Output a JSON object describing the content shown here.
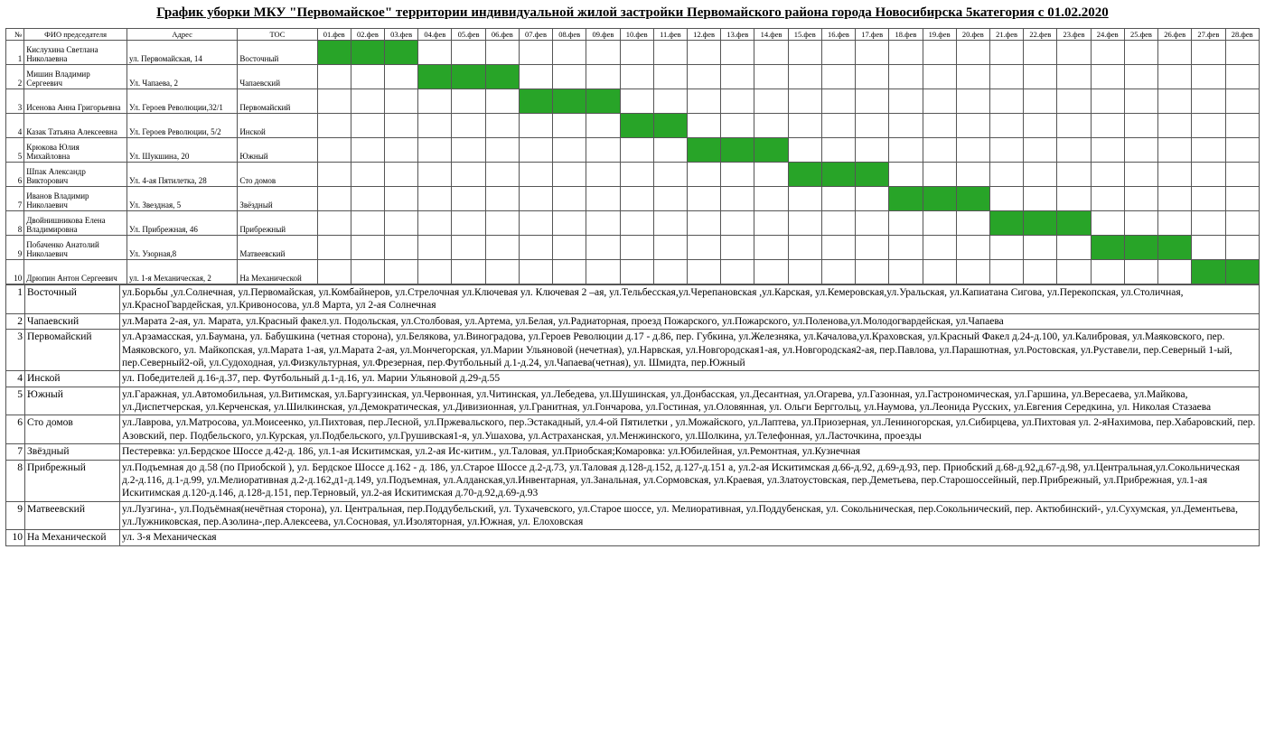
{
  "title": "График уборки МКУ \"Первомайское\" территории индивидуальной жилой застройки Первомайского района города Новосибирска  5категория с 01.02.2020",
  "headers": {
    "num": "№",
    "name": "ФИО председателя",
    "address": "Адрес",
    "tos": "ТОС"
  },
  "days": [
    "01.фев",
    "02.фев",
    "03.фев",
    "04.фев",
    "05.фев",
    "06.фев",
    "07.фев",
    "08.фев",
    "09.фев",
    "10.фев",
    "11.фев",
    "12.фев",
    "13.фев",
    "14.фев",
    "15.фев",
    "16.фев",
    "17.фев",
    "18.фев",
    "19.фев",
    "20.фев",
    "21.фев",
    "22.фев",
    "23.фев",
    "24.фев",
    "25.фев",
    "26.фев",
    "27.фев",
    "28.фев"
  ],
  "rows": [
    {
      "num": "1",
      "name": "Кислухина Светлана Николаевна",
      "address": "ул. Первомайская, 14",
      "tos": "Восточный",
      "marks": [
        1,
        2,
        3
      ]
    },
    {
      "num": "2",
      "name": "Мишин Владимир Сергеевич",
      "address": "Ул. Чапаева, 2",
      "tos": "Чапаевский",
      "marks": [
        4,
        5,
        6
      ]
    },
    {
      "num": "3",
      "name": "Исенова Анна Григорьевна",
      "address": "Ул. Героев Революции,32/1",
      "tos": "Первомайский",
      "marks": [
        7,
        8,
        9
      ]
    },
    {
      "num": "4",
      "name": "Казак Татьяна Алексеевна",
      "address": "Ул. Героев Революции, 5/2",
      "tos": "Инской",
      "marks": [
        10,
        11
      ]
    },
    {
      "num": "5",
      "name": "Крюкова Юлия Михайловна",
      "address": "Ул. Шукшина, 20",
      "tos": "Южный",
      "marks": [
        12,
        13,
        14
      ]
    },
    {
      "num": "6",
      "name": "Шпак Александр Викторович",
      "address": "Ул. 4-ая Пятилетка, 28",
      "tos": "Сто домов",
      "marks": [
        15,
        16,
        17
      ]
    },
    {
      "num": "7",
      "name": "Иванов Владимир Николаевич",
      "address": "Ул. Звездная, 5",
      "tos": "Звёздный",
      "marks": [
        18,
        19,
        20
      ]
    },
    {
      "num": "8",
      "name": "Двойнишникова Елена Владимировна",
      "address": "Ул. Прибрежная, 46",
      "tos": "Прибрежный",
      "marks": [
        21,
        22,
        23
      ]
    },
    {
      "num": "9",
      "name": "Побаченко Анатолий Николаевич",
      "address": "Ул. Узорная,8",
      "tos": "Матвеевский",
      "marks": [
        24,
        25,
        26
      ]
    },
    {
      "num": "10",
      "name": "Дрюпин Антон Сергеевич",
      "address": "ул. 1-я Механическая, 2",
      "tos": "На Механической",
      "marks": [
        27,
        28
      ]
    }
  ],
  "districts": [
    {
      "num": "1",
      "name": "Восточный",
      "desc": "ул.Борьбы ,ул.Солнечная, ул.Первомайская, ул.Комбайнеров, ул.Стрелочная ул.Ключевая ул. Ключевая 2 –ая, ул.Тельбесская,ул.Черепановская ,ул.Карская, ул.Кемеровская,ул.Уральская, ул.Капиатана Сигова, ул.Перекопская, ул.Столичная, ул.КрасноГвардейская, ул.Кривоносова, ул.8 Марта, ул 2-ая Солнечная"
    },
    {
      "num": "2",
      "name": "Чапаевский",
      "desc": "ул.Марата 2-ая, ул. Марата, ул.Красный факел.ул. Подольская, ул.Столбовая, ул.Артема, ул.Белая, ул.Радиаторная, проезд Пожарского, ул.Пожарского, ул.Поленова,ул.Молодогвардейская, ул.Чапаева"
    },
    {
      "num": "3",
      "name": "Первомайский",
      "desc": "ул.Арзамасская, ул.Баумана, ул. Бабушкина (четная сторона), ул.Белякова, ул.Виноградова, ул.Героев Революции д.17 - д.86, пер. Губкина, ул.Железняка, ул.Качалова,ул.Краховская, ул.Красный Факел д.24-д.100, ул.Калибровая, ул.Маяковского, пер. Маяковского, ул. Майкопская, ул.Марата 1-ая, ул.Марата 2-ая, ул.Мончегорская, ул.Марии Ульяновой (нечетная), ул.Нарвская, ул.Новгородская1-ая, ул.Новгородская2-ая, пер.Павлова, ул.Парашютная, ул.Ростовская, ул.Руставели, пер.Северный 1-ый, пер.Северный2-ой, ул.Судоходная, ул.Физкультурная, ул.Фрезерная, пер.Футбольный д.1-д.24, ул.Чапаева(четная), ул. Шмидта, пер.Южный"
    },
    {
      "num": "4",
      "name": "Инской",
      "desc": "ул. Победителей д.16-д.37, пер. Футбольный д.1-д.16, ул. Марии Ульяновой д.29-д.55"
    },
    {
      "num": "5",
      "name": "Южный",
      "desc": "ул.Гаражная, ул.Автомобильная, ул.Витимская, ул.Баргузинская, ул.Червонная, ул.Читинская, ул.Лебедева, ул.Шушинская, ул.Донбасская, ул.Десантная, ул.Огарева, ул.Газонная, ул.Гастрономическая, ул.Гаршина, ул.Вересаева, ул.Майкова, ул.Диспетчерская, ул.Керченская, ул.Шилкинская, ул.Демократическая, ул.Дивизионная, ул.Гранитная, ул.Гончарова, ул.Гостиная, ул.Оловянная, ул. Ольги Берггольц, ул.Наумова, ул.Леонида Русских, ул.Евгения Середкина, ул. Николая Стазаева"
    },
    {
      "num": "6",
      "name": "Сто домов",
      "desc": "ул.Лаврова, ул.Матросова, ул.Моисеенко, ул.Пихтовая, пер.Лесной, ул.Пржевальского, пер.Эстакадный, ул.4-ой Пятилетки , ул.Можайского, ул.Лаптева, ул.Приозерная, ул.Лениногорская, ул.Сибирцева, ул.Пихтовая ул. 2-яНахимова, пер.Хабаровский, пер.\nАзовский, пер. Подбельского, ул.Курская, ул.Подбельского, ул.Грушивская1-я, ул.Ушахова, ул.Астраханская, ул.Менжинского, ул.Шолкина, ул.Телефонная, ул.Ласточкина, проезды"
    },
    {
      "num": "7",
      "name": "Звёздный",
      "desc": "Пестеревка: ул.Бердское Шоссе д.42-д. 186, ул.1-ая Искитимская, ул.2-ая Ис-китим., ул.Таловая, ул.Приобская;Комаровка: ул.Юбилейная, ул.Ремонтная, ул.Кузнечная"
    },
    {
      "num": "8",
      "name": "Прибрежный",
      "desc": "ул.Подъемная до д.58 (по Приобской ), ул. Бердское Шоссе д.162 - д. 186, ул.Старое Шоссе д.2-д.73, ул.Таловая д.128-д.152, д.127-д.151 а, ул.2-ая Искитимская д.66-д.92, д.69-д.93, пер. Приобский д.68-д.92,д.67-д.98, ул.Центральная,ул.Сокольническая д.2-д.116, д.1-д.99, ул.Мелиоративная д.2-д.162,д1-д.149, ул.Подъемная, ул.Алданская,ул.Инвентарная, ул.Занальная, ул.Сормовская, ул.Краевая, ул.Златоустовская, пер.Деметьева, пер.Старошоссейный, пер.Прибрежный, ул.Прибрежная, ул.1-ая Искитимская д.120-д.146, д.128-д.151, пер.Терновый, ул.2-ая Искитимская д.70-д.92,д.69-д.93"
    },
    {
      "num": "9",
      "name": "Матвеевский",
      "desc": "ул.Лузгина-, ул.Подъёмная(нечётная сторона), ул. Центральная, пер.Поддубельский, ул. Тухачевского, ул.Старое шоссе, ул. Мелиоративная, ул.Поддубенская, ул. Сокольническая, пер.Сокольнический, пер. Актюбинский-, ул.Сухумская, ул.Дементьева, ул.Лужниковская, пер.Азолина-,пер.Алексеева, ул.Сосновая, ул.Изоляторная, ул.Южная, ул. Елоховская"
    },
    {
      "num": "10",
      "name": "На Механической",
      "desc": "ул. 3-я Механическая"
    }
  ],
  "colors": {
    "mark": "#28a428"
  }
}
